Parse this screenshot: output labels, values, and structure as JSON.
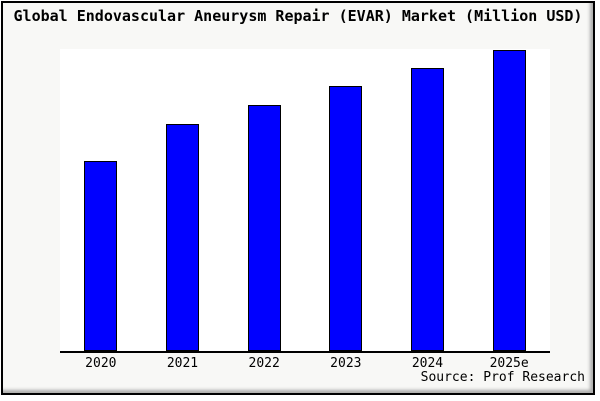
{
  "window": {
    "background_color": "#f8f8f6",
    "frame_color": "#000000"
  },
  "chart_data": {
    "type": "bar",
    "title": "Global Endovascular Aneurysm Repair (EVAR) Market (Million USD)",
    "categories": [
      "2020",
      "2021",
      "2022",
      "2023",
      "2024",
      "2025e"
    ],
    "values": [
      190,
      227,
      246,
      265,
      283,
      301
    ],
    "values_note": "no y-axis ticks or labels shown; values are relative bar heights (pixels) read from the plot",
    "xlabel": "",
    "ylabel": "",
    "ylim": [
      0,
      303
    ],
    "grid": false,
    "legend": false,
    "plot_bg": "#ffffff",
    "bar_color": "#0000ff",
    "bar_border_color": "#000000",
    "axis_color": "#000000",
    "source": "Source: Prof Research"
  }
}
